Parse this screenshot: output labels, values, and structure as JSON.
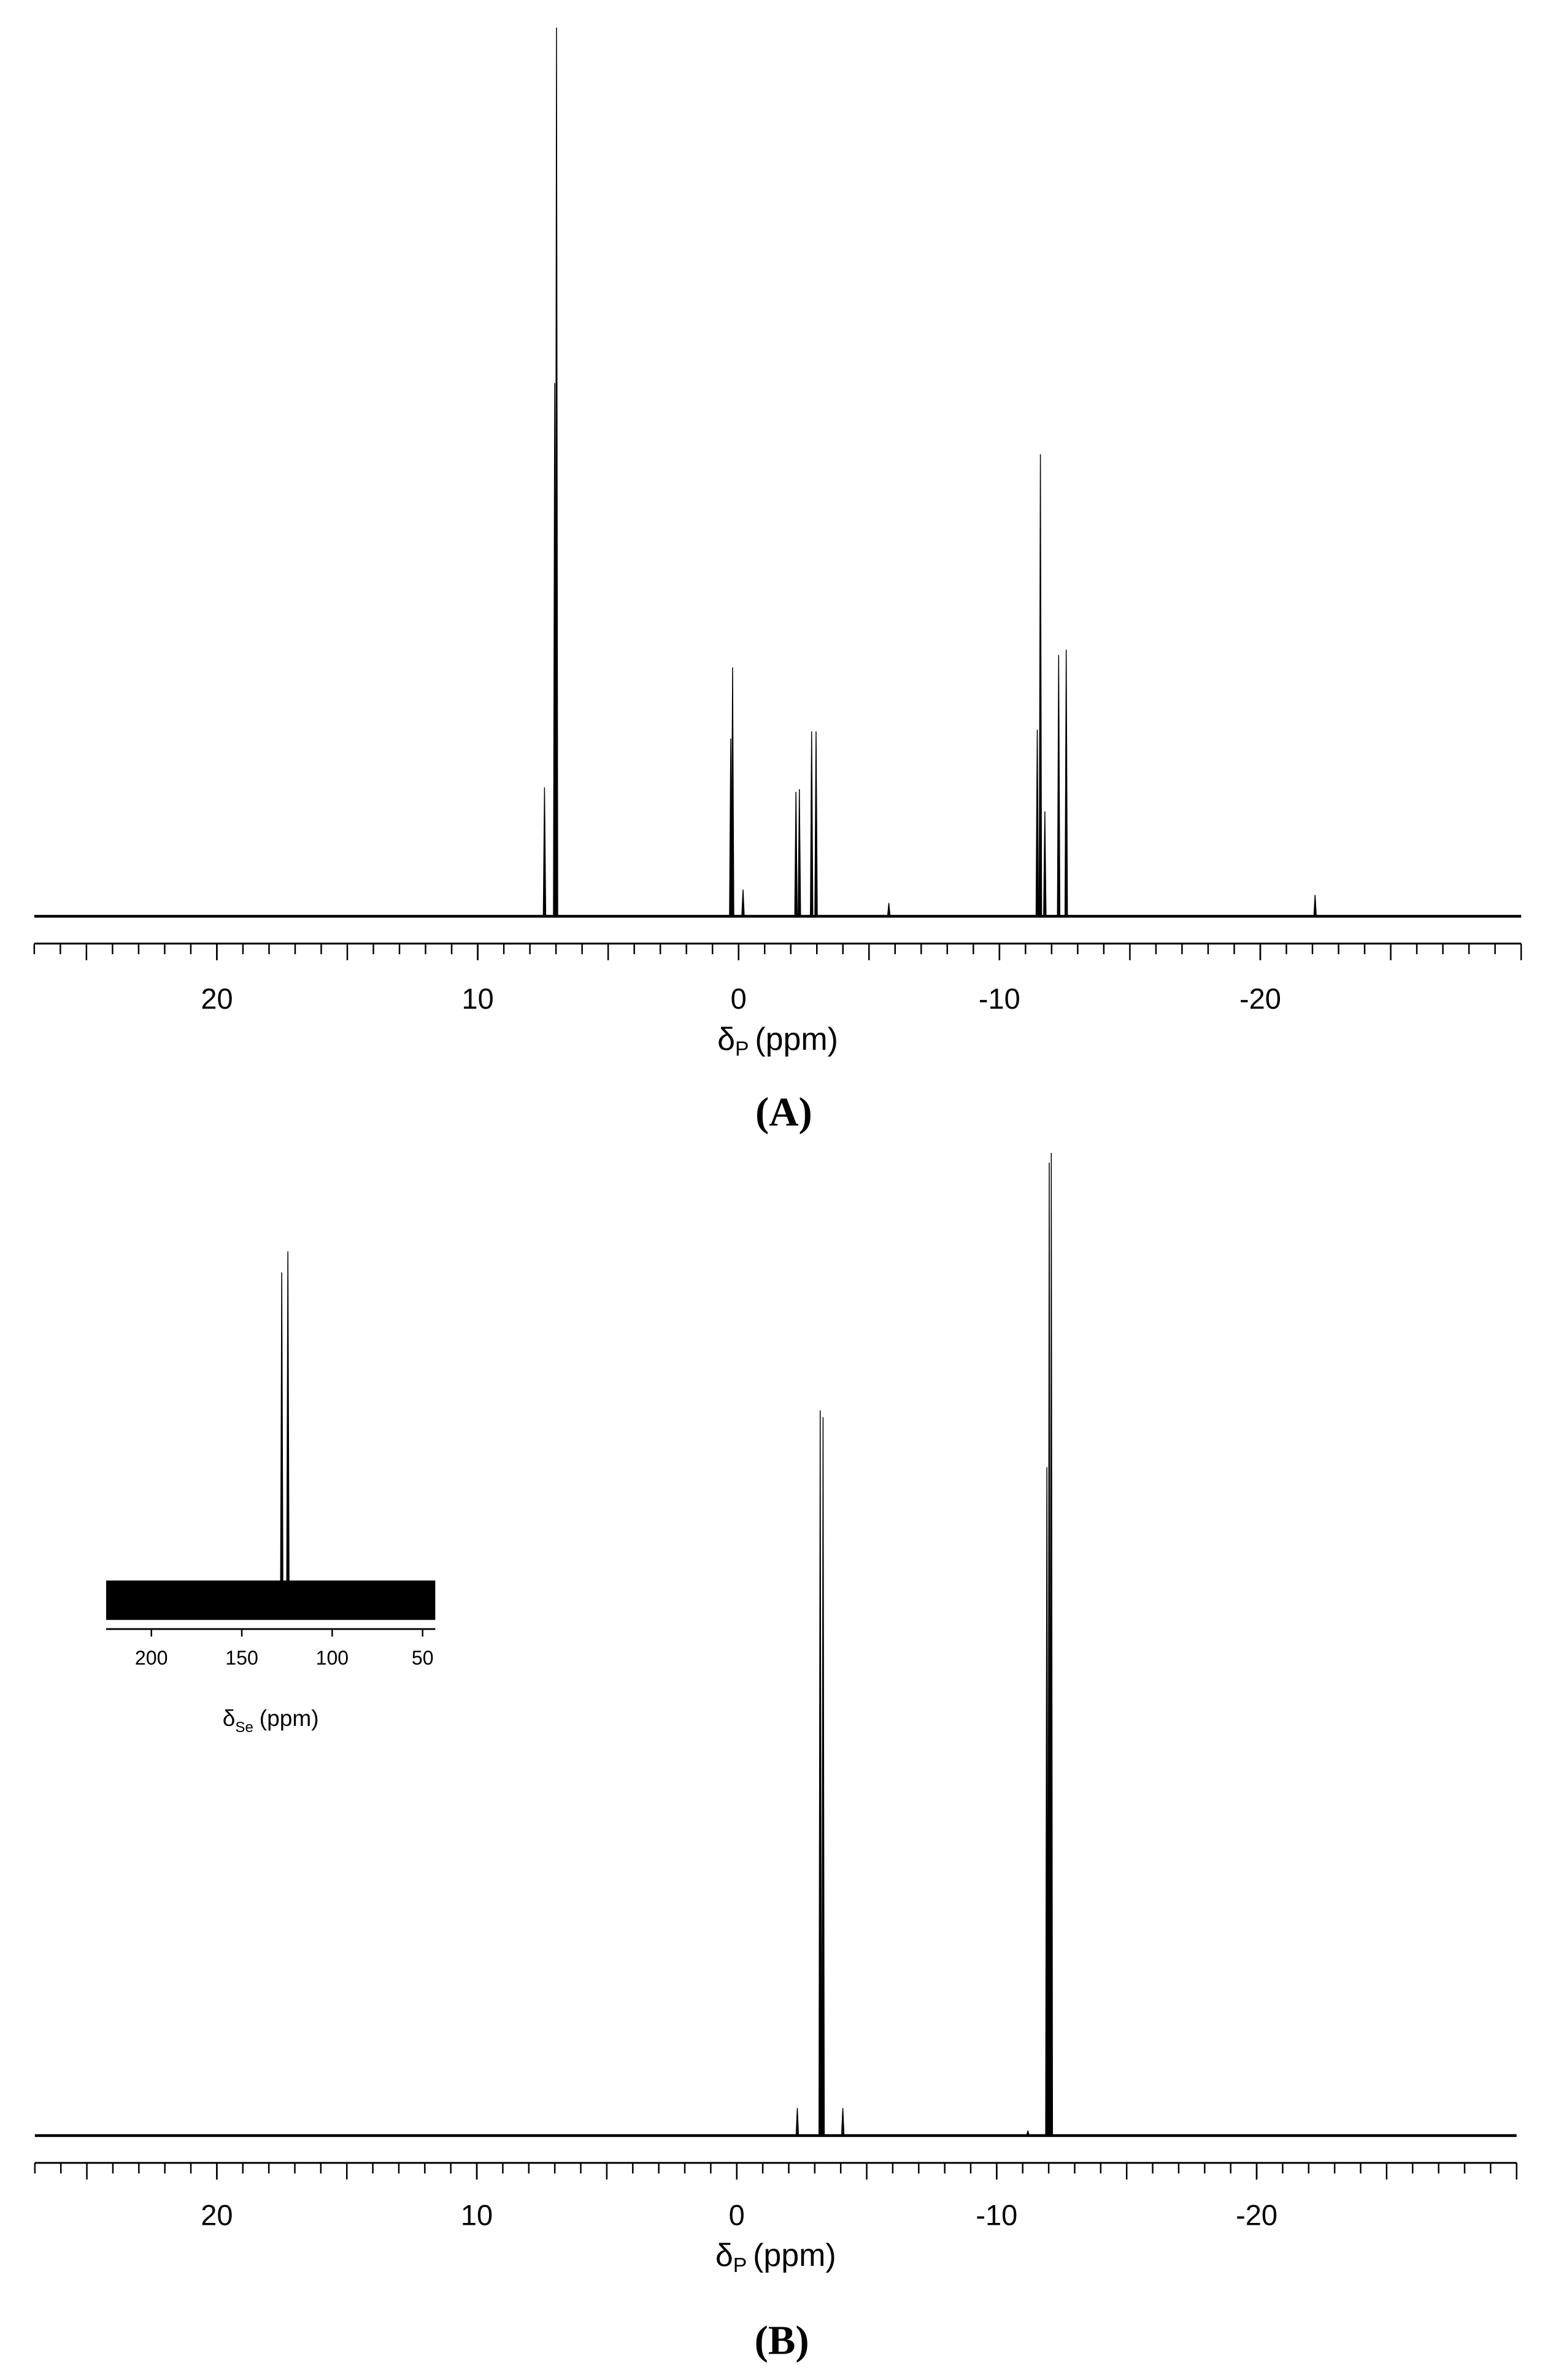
{
  "chart_data": [
    {
      "type": "spectrum",
      "caption": "(A)",
      "xlabel": "δ",
      "xlabel_sub": "P",
      "xlabel_unit": "(ppm)",
      "xlim": [
        27,
        -30
      ],
      "xticks": [
        20,
        10,
        0,
        -10,
        -20
      ],
      "minor_step": 1,
      "ylim": [
        0,
        100
      ],
      "color": "#000000",
      "x": [
        7.44,
        7.05,
        6.98,
        0.3,
        0.23,
        -0.17,
        -2.2,
        -2.33,
        -2.8,
        -2.97,
        -5.76,
        -11.45,
        -11.57,
        -11.74,
        -12.27,
        -12.56,
        -22.1
      ],
      "values": [
        14.5,
        60,
        100,
        20,
        28,
        3,
        14,
        14.3,
        20.8,
        20.8,
        1.5,
        21,
        52,
        11.8,
        29.4,
        30,
        2.4
      ]
    },
    {
      "type": "spectrum",
      "caption": "(B)",
      "xlabel": "δ",
      "xlabel_sub": "P",
      "xlabel_unit": "(ppm)",
      "xlim": [
        27,
        -30
      ],
      "xticks": [
        20,
        10,
        0,
        -10,
        -20
      ],
      "minor_step": 1,
      "ylim": [
        0,
        100
      ],
      "color": "#000000",
      "x": [
        -2.33,
        -3.21,
        -3.32,
        -4.08,
        -11.2,
        -11.93,
        -12.02,
        -12.1
      ],
      "values": [
        2.8,
        73.8,
        73.1,
        2.8,
        0.5,
        68,
        99,
        100
      ]
    },
    {
      "type": "spectrum",
      "xlabel": "δ",
      "xlabel_sub": "Se",
      "xlabel_unit": "(ppm)",
      "xlim": [
        225,
        43
      ],
      "xticks": [
        200,
        150,
        100,
        50
      ],
      "ylim": [
        0,
        100
      ],
      "color": "#000000",
      "x": [
        127.9,
        124.5
      ],
      "values": [
        94,
        100
      ]
    }
  ]
}
